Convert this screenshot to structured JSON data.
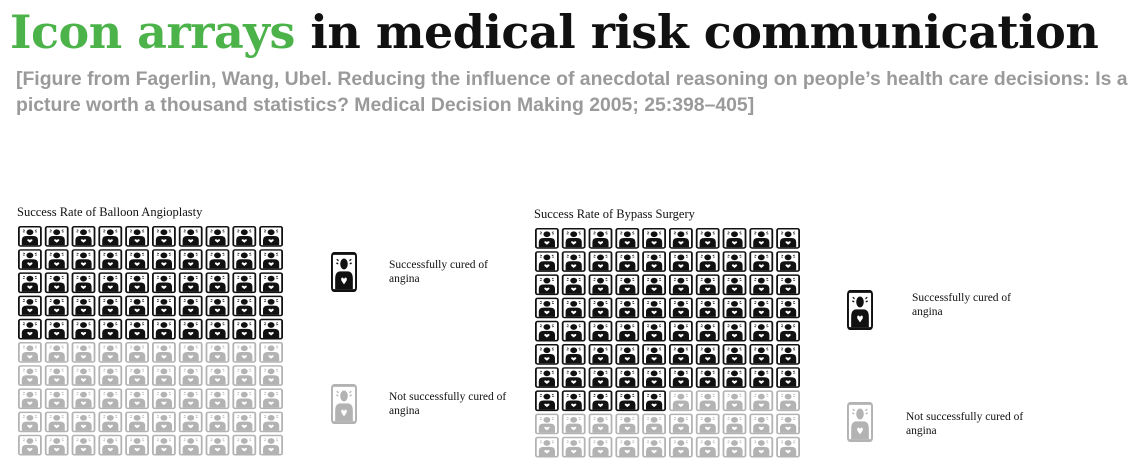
{
  "header": {
    "title_accent": "Icon arrays",
    "title_rest": " in medical risk communication",
    "subtitle": "[Figure from Fagerlin, Wang, Ubel. Reducing the influence of anecdotal reasoning on people’s health care decisions: Is a picture worth a thousand statistics? Medical Decision Making 2005; 25:398–405]"
  },
  "colors": {
    "accent": "#4bb349",
    "title": "#111111",
    "subtitle": "#9a9a9a",
    "cured": "#111111",
    "not_cured": "#b3b3b3"
  },
  "icon_names": {
    "cured": "person-cured-icon",
    "not_cured": "person-not-cured-icon"
  },
  "chart_data": [
    {
      "type": "icon-array",
      "title": "Success Rate of Balloon Angioplasty",
      "grid": {
        "rows": 10,
        "columns": 10
      },
      "total": 100,
      "series": [
        {
          "name": "Successfully cured of angina",
          "value": 50
        },
        {
          "name": "Not successfully cured of angina",
          "value": 50
        }
      ]
    },
    {
      "type": "icon-array",
      "title": "Success Rate of Bypass Surgery",
      "grid": {
        "rows": 10,
        "columns": 10
      },
      "total": 100,
      "series": [
        {
          "name": "Successfully cured of angina",
          "value": 75
        },
        {
          "name": "Not successfully cured of angina",
          "value": 25
        }
      ]
    }
  ]
}
